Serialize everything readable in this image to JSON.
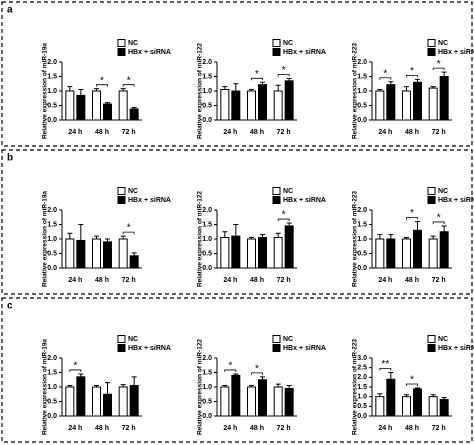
{
  "panel_labels": [
    "a",
    "b",
    "c"
  ],
  "chart_data": [
    {
      "type": "bar",
      "y_label": "Relative expression of miR-19a",
      "categories": [
        "24 h",
        "48 h",
        "72 h"
      ],
      "series": [
        {
          "name": "NC",
          "color": "#ffffff",
          "values": [
            1.0,
            1.0,
            1.0
          ],
          "errors": [
            0.15,
            0.08,
            0.08
          ]
        },
        {
          "name": "HBx + siRNA",
          "color": "#000000",
          "values": [
            0.85,
            0.55,
            0.38
          ],
          "errors": [
            0.2,
            0.05,
            0.05
          ]
        }
      ],
      "annotations": [
        null,
        "*",
        "*"
      ],
      "ylim": [
        0,
        2
      ],
      "yticks": [
        {
          "value": 0,
          "label": "0.0"
        },
        0.5,
        {
          "value": 1,
          "label": "1.0"
        },
        1.5,
        {
          "value": 2,
          "label": "2.0"
        }
      ]
    },
    {
      "type": "bar",
      "y_label": "Relative expression of miR-122",
      "categories": [
        "24 h",
        "48 h",
        "72 h"
      ],
      "series": [
        {
          "name": "NC",
          "color": "#ffffff",
          "values": [
            1.05,
            1.0,
            1.0
          ],
          "errors": [
            0.1,
            0.05,
            0.2
          ]
        },
        {
          "name": "HBx + siRNA",
          "color": "#000000",
          "values": [
            1.0,
            1.22,
            1.35
          ],
          "errors": [
            0.25,
            0.08,
            0.08
          ]
        }
      ],
      "annotations": [
        null,
        "*",
        "*"
      ],
      "ylim": [
        0,
        2
      ],
      "yticks": [
        {
          "value": 0,
          "label": "0.0"
        },
        0.5,
        {
          "value": 1,
          "label": "1.0"
        },
        1.5,
        {
          "value": 2,
          "label": "2.0"
        }
      ]
    },
    {
      "type": "bar",
      "y_label": "Relative expression of miR-223",
      "categories": [
        "24 h",
        "48 h",
        "72 h"
      ],
      "series": [
        {
          "name": "NC",
          "color": "#ffffff",
          "values": [
            1.0,
            1.0,
            1.1
          ],
          "errors": [
            0.05,
            0.15,
            0.05
          ]
        },
        {
          "name": "HBx + siRNA",
          "color": "#000000",
          "values": [
            1.22,
            1.3,
            1.5
          ],
          "errors": [
            0.1,
            0.1,
            0.15
          ]
        }
      ],
      "annotations": [
        "*",
        "*",
        "*"
      ],
      "ylim": [
        0,
        2
      ],
      "yticks": [
        {
          "value": 0,
          "label": "0.0"
        },
        0.5,
        {
          "value": 1,
          "label": "1.0"
        },
        1.5,
        {
          "value": 2,
          "label": "2.0"
        }
      ]
    },
    {
      "type": "bar",
      "y_label": "Relative expression of miR-19a",
      "categories": [
        "24 h",
        "48 h",
        "72 h"
      ],
      "series": [
        {
          "name": "NC",
          "color": "#ffffff",
          "values": [
            1.0,
            1.0,
            1.0
          ],
          "errors": [
            0.2,
            0.1,
            0.1
          ]
        },
        {
          "name": "HBx + siRNA",
          "color": "#000000",
          "values": [
            0.95,
            0.9,
            0.42
          ],
          "errors": [
            0.55,
            0.1,
            0.1
          ]
        }
      ],
      "annotations": [
        null,
        null,
        "*"
      ],
      "ylim": [
        0,
        2
      ],
      "yticks": [
        {
          "value": 0,
          "label": "0.0"
        },
        0.5,
        {
          "value": 1,
          "label": "1.0"
        },
        1.5,
        {
          "value": 2,
          "label": "2.0"
        }
      ]
    },
    {
      "type": "bar",
      "y_label": "Relative expression of miR-122",
      "categories": [
        "24 h",
        "48 h",
        "72 h"
      ],
      "series": [
        {
          "name": "NC",
          "color": "#ffffff",
          "values": [
            1.05,
            1.0,
            1.05
          ],
          "errors": [
            0.2,
            0.05,
            0.15
          ]
        },
        {
          "name": "HBx + siRNA",
          "color": "#000000",
          "values": [
            1.1,
            1.05,
            1.45
          ],
          "errors": [
            0.4,
            0.1,
            0.1
          ]
        }
      ],
      "annotations": [
        null,
        null,
        "*"
      ],
      "ylim": [
        0,
        2
      ],
      "yticks": [
        {
          "value": 0,
          "label": "0.0"
        },
        0.5,
        {
          "value": 1,
          "label": "1.0"
        },
        1.5,
        {
          "value": 2,
          "label": "2.0"
        }
      ]
    },
    {
      "type": "bar",
      "y_label": "Relative expression of miR-223",
      "categories": [
        "24 h",
        "48 h",
        "72 h"
      ],
      "series": [
        {
          "name": "NC",
          "color": "#ffffff",
          "values": [
            1.0,
            1.0,
            1.0
          ],
          "errors": [
            0.15,
            0.05,
            0.1
          ]
        },
        {
          "name": "HBx + siRNA",
          "color": "#000000",
          "values": [
            1.0,
            1.3,
            1.25
          ],
          "errors": [
            0.15,
            0.3,
            0.2
          ]
        }
      ],
      "annotations": [
        null,
        "*",
        "*"
      ],
      "ylim": [
        0,
        2
      ],
      "yticks": [
        {
          "value": 0,
          "label": "0.0"
        },
        0.5,
        {
          "value": 1,
          "label": "1.0"
        },
        1.5,
        {
          "value": 2,
          "label": "2.0"
        }
      ]
    },
    {
      "type": "bar",
      "y_label": "Relative expression of miR-19a",
      "categories": [
        "24 h",
        "48 h",
        "72 h"
      ],
      "series": [
        {
          "name": "NC",
          "color": "#ffffff",
          "values": [
            1.0,
            1.0,
            1.0
          ],
          "errors": [
            0.05,
            0.05,
            0.08
          ]
        },
        {
          "name": "HBx + siRNA",
          "color": "#000000",
          "values": [
            1.35,
            0.75,
            1.05
          ],
          "errors": [
            0.1,
            0.4,
            0.3
          ]
        }
      ],
      "annotations": [
        "*",
        null,
        null
      ],
      "ylim": [
        0,
        2
      ],
      "yticks": [
        {
          "value": 0,
          "label": "0.0"
        },
        0.5,
        {
          "value": 1,
          "label": "1.0"
        },
        1.5,
        {
          "value": 2,
          "label": "2.0"
        }
      ]
    },
    {
      "type": "bar",
      "y_label": "Relative expression of miR-122",
      "categories": [
        "24 h",
        "48 h",
        "72 h"
      ],
      "series": [
        {
          "name": "NC",
          "color": "#ffffff",
          "values": [
            1.0,
            1.0,
            1.0
          ],
          "errors": [
            0.05,
            0.05,
            0.1
          ]
        },
        {
          "name": "HBx + siRNA",
          "color": "#000000",
          "values": [
            1.4,
            1.25,
            0.95
          ],
          "errors": [
            0.05,
            0.1,
            0.1
          ]
        }
      ],
      "annotations": [
        "*",
        "*",
        null
      ],
      "ylim": [
        0,
        2
      ],
      "yticks": [
        {
          "value": 0,
          "label": "0.0"
        },
        0.5,
        {
          "value": 1,
          "label": "1.0"
        },
        1.5,
        {
          "value": 2,
          "label": "2.0"
        }
      ]
    },
    {
      "type": "bar",
      "y_label": "Relative expression of miR-223",
      "categories": [
        "24 h",
        "48 h",
        "72 h"
      ],
      "series": [
        {
          "name": "NC",
          "color": "#ffffff",
          "values": [
            1.0,
            1.0,
            1.0
          ],
          "errors": [
            0.15,
            0.1,
            0.1
          ]
        },
        {
          "name": "HBx + siRNA",
          "color": "#000000",
          "values": [
            1.9,
            1.4,
            0.85
          ],
          "errors": [
            0.35,
            0.05,
            0.1
          ]
        }
      ],
      "annotations": [
        "**",
        "*",
        null
      ],
      "ylim": [
        0,
        3
      ],
      "yticks": [
        {
          "value": 0,
          "label": "0.0"
        },
        0.5,
        {
          "value": 1,
          "label": "1.0"
        },
        1.5,
        {
          "value": 2,
          "label": "2.0"
        },
        2.5,
        {
          "value": 3,
          "label": "3.0"
        }
      ]
    }
  ]
}
